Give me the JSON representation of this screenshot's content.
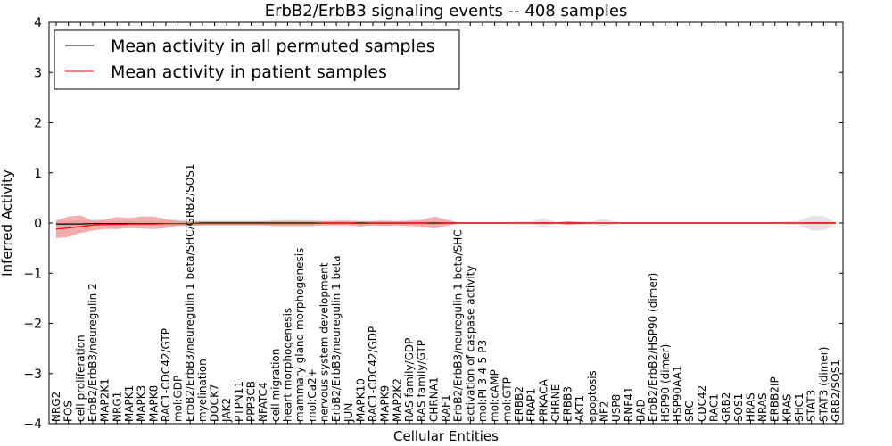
{
  "chart_data": {
    "type": "line",
    "title": "ErbB2/ErbB3 signaling events -- 408 samples",
    "xlabel": "Cellular Entities",
    "ylabel": "Inferred Activity",
    "ylim": [
      -4,
      4
    ],
    "yticks": [
      -4,
      -3,
      -2,
      -1,
      0,
      1,
      2,
      3,
      4
    ],
    "legend_position": "top-left",
    "categories": [
      "NRG2",
      "FOS",
      "cell proliferation",
      "ErbB2/ErbB3/neuregulin 2",
      "MAP2K1",
      "NRG1",
      "MAPK1",
      "MAPK3",
      "MAPK8",
      "RAC1-CDC42/GTP",
      "mol:GDP",
      "ErbB2/ErbB3/neuregulin 1 beta/SHC/GRB2/SOS1",
      "myelination",
      "DOCK7",
      "JAK2",
      "PTPN11",
      "PPP3CB",
      "NFATC4",
      "cell migration",
      "heart morphogenesis",
      "mammary gland morphogenesis",
      "mol:Ca2+",
      "nervous system development",
      "ErbB2/ErbB3/neuregulin 1 beta",
      "JUN",
      "MAPK10",
      "RAC1-CDC42/GDP",
      "MAPK9",
      "MAP2K2",
      "RAS family/GDP",
      "RAS family/GTP",
      "CHRNA1",
      "RAF1",
      "ErbB2/ErbB3/neuregulin 1 beta/SHC",
      "activation of caspase activity",
      "mol:PI-3-4-5-P3",
      "mol:cAMP",
      "mol:GTP",
      "ERBB2",
      "FRAP1",
      "PRKACA",
      "CHRNE",
      "ERBB3",
      "AKT1",
      "apoptosis",
      "NF2",
      "USP8",
      "RNF41",
      "BAD",
      "ErbB2/ErbB2/HSP90 (dimer)",
      "HSP90 (dimer)",
      "HSP90AA1",
      "SRC",
      "CDC42",
      "RAC1",
      "GRB2",
      "SOS1",
      "HRAS",
      "NRAS",
      "ERBB2IP",
      "KRAS",
      "SHC1",
      "STAT3",
      "STAT3 (dimer)",
      "GRB2/SOS1"
    ],
    "series": [
      {
        "name": "Mean activity in all permuted samples",
        "color": "#000000",
        "values": [
          -0.02,
          -0.02,
          -0.02,
          -0.01,
          -0.01,
          -0.01,
          -0.01,
          -0.01,
          -0.01,
          -0.01,
          -0.01,
          -0.01,
          0,
          0,
          0,
          0,
          0,
          0,
          0,
          0,
          0,
          0,
          0,
          0,
          0,
          0,
          0,
          0,
          0,
          0,
          0,
          0,
          0,
          0,
          0,
          0,
          0,
          0,
          0,
          0,
          0,
          0,
          0,
          0,
          0,
          0,
          0,
          0,
          0,
          0,
          0,
          0,
          0,
          0,
          0,
          0,
          0,
          0,
          0,
          0,
          0,
          0,
          0,
          0,
          0
        ],
        "band": {
          "color": "#cccccc",
          "lower": [
            -0.08,
            -0.08,
            -0.08,
            -0.06,
            -0.05,
            -0.05,
            -0.05,
            -0.05,
            -0.05,
            -0.05,
            -0.04,
            -0.03,
            -0.03,
            -0.03,
            -0.03,
            -0.03,
            -0.03,
            -0.03,
            -0.03,
            -0.03,
            -0.03,
            -0.03,
            -0.03,
            -0.03,
            -0.03,
            -0.03,
            -0.03,
            -0.03,
            -0.03,
            -0.03,
            -0.03,
            -0.03,
            -0.03,
            -0.02,
            -0.02,
            -0.02,
            -0.02,
            -0.02,
            -0.03,
            -0.03,
            -0.08,
            -0.02,
            -0.03,
            -0.03,
            -0.03,
            -0.06,
            -0.02,
            -0.02,
            -0.02,
            -0.02,
            -0.02,
            -0.02,
            -0.02,
            -0.02,
            -0.02,
            -0.02,
            -0.02,
            -0.02,
            -0.02,
            -0.02,
            -0.03,
            -0.04,
            -0.15,
            -0.15,
            -0.02
          ],
          "upper": [
            0.05,
            0.05,
            0.05,
            0.05,
            0.04,
            0.04,
            0.04,
            0.04,
            0.04,
            0.04,
            0.04,
            0.03,
            0.03,
            0.03,
            0.03,
            0.03,
            0.03,
            0.03,
            0.03,
            0.03,
            0.03,
            0.03,
            0.03,
            0.03,
            0.03,
            0.03,
            0.03,
            0.03,
            0.03,
            0.03,
            0.03,
            0.03,
            0.03,
            0.02,
            0.02,
            0.02,
            0.02,
            0.02,
            0.03,
            0.03,
            0.1,
            0.02,
            0.03,
            0.03,
            0.03,
            0.08,
            0.02,
            0.02,
            0.02,
            0.02,
            0.02,
            0.02,
            0.02,
            0.02,
            0.02,
            0.02,
            0.02,
            0.02,
            0.02,
            0.02,
            0.03,
            0.05,
            0.14,
            0.14,
            0.02
          ]
        }
      },
      {
        "name": "Mean activity in patient samples",
        "color": "#ff0000",
        "values": [
          -0.12,
          -0.1,
          -0.07,
          -0.04,
          -0.03,
          -0.03,
          -0.02,
          -0.02,
          -0.02,
          -0.01,
          -0.01,
          -0.01,
          -0.01,
          -0.01,
          -0.01,
          -0.01,
          -0.01,
          -0.01,
          -0.01,
          -0.01,
          -0.01,
          -0.01,
          0,
          0,
          0,
          -0.01,
          0,
          0,
          0,
          0,
          0,
          -0.01,
          0,
          0,
          0,
          0,
          0,
          0,
          0,
          0,
          0,
          0,
          0,
          0,
          0,
          0,
          0,
          0,
          0,
          0,
          0,
          0,
          0,
          0,
          0,
          0,
          0,
          0,
          0,
          0,
          0,
          0,
          0,
          0,
          0
        ],
        "band": {
          "color": "#f08080",
          "lower": [
            -0.3,
            -0.28,
            -0.2,
            -0.15,
            -0.12,
            -0.12,
            -0.1,
            -0.11,
            -0.12,
            -0.1,
            -0.06,
            -0.06,
            -0.05,
            -0.05,
            -0.05,
            -0.05,
            -0.05,
            -0.05,
            -0.06,
            -0.06,
            -0.06,
            -0.06,
            -0.05,
            -0.05,
            -0.05,
            -0.07,
            -0.05,
            -0.06,
            -0.05,
            -0.06,
            -0.07,
            -0.11,
            -0.06,
            -0.01,
            -0.01,
            -0.01,
            -0.01,
            -0.01,
            -0.01,
            -0.01,
            -0.02,
            -0.01,
            -0.04,
            -0.02,
            -0.01,
            -0.01,
            -0.01,
            -0.01,
            -0.01,
            -0.01,
            -0.01,
            -0.01,
            -0.01,
            -0.01,
            -0.01,
            -0.01,
            -0.01,
            -0.01,
            -0.01,
            -0.01,
            -0.01,
            -0.01,
            -0.02,
            -0.02,
            -0.01
          ],
          "upper": [
            0.05,
            0.13,
            0.15,
            0.05,
            0.07,
            0.12,
            0.1,
            0.13,
            0.13,
            0.08,
            0.05,
            0.04,
            0.04,
            0.04,
            0.04,
            0.04,
            0.04,
            0.04,
            0.05,
            0.05,
            0.05,
            0.05,
            0.04,
            0.05,
            0.05,
            0.04,
            0.04,
            0.05,
            0.04,
            0.05,
            0.06,
            0.13,
            0.07,
            0.01,
            0.01,
            0.01,
            0.01,
            0.01,
            0.01,
            0.01,
            0.02,
            0.01,
            0.04,
            0.02,
            0.01,
            0.01,
            0.01,
            0.01,
            0.01,
            0.01,
            0.01,
            0.01,
            0.01,
            0.01,
            0.01,
            0.01,
            0.01,
            0.01,
            0.01,
            0.01,
            0.01,
            0.01,
            0.02,
            0.02,
            0.01
          ]
        }
      }
    ]
  }
}
